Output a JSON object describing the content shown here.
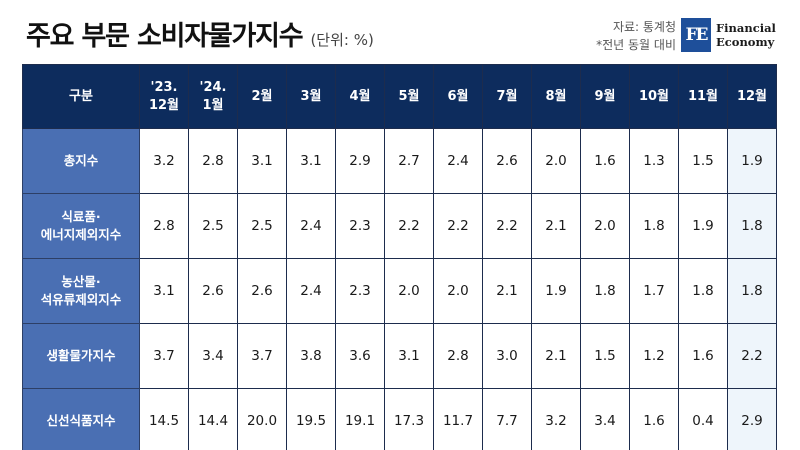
{
  "header": {
    "title": "주요 부문 소비자물가지수",
    "unit": "(단위: %)",
    "source_line1": "자료: 통계청",
    "source_line2": "*전년 동월 대비"
  },
  "logo": {
    "mark": "FE",
    "line1": "Financial",
    "line2": "Economy"
  },
  "colors": {
    "header_bg": "#0d2c5d",
    "row_header_bg": "#4a6fb3",
    "highlight_col_bg": "#eef5fb"
  },
  "chart_data": {
    "type": "table",
    "title": "주요 부문 소비자물가지수",
    "unit": "%",
    "columns": [
      "구분",
      "'23.\n12월",
      "'24.\n1월",
      "2월",
      "3월",
      "4월",
      "5월",
      "6월",
      "7월",
      "8월",
      "9월",
      "10월",
      "11월",
      "12월"
    ],
    "rows": [
      {
        "label": "총지수",
        "values": [
          "3.2",
          "2.8",
          "3.1",
          "3.1",
          "2.9",
          "2.7",
          "2.4",
          "2.6",
          "2.0",
          "1.6",
          "1.3",
          "1.5",
          "1.9"
        ]
      },
      {
        "label": "식료품·\n에너지제외지수",
        "values": [
          "2.8",
          "2.5",
          "2.5",
          "2.4",
          "2.3",
          "2.2",
          "2.2",
          "2.2",
          "2.1",
          "2.0",
          "1.8",
          "1.9",
          "1.8"
        ]
      },
      {
        "label": "농산물·\n석유류제외지수",
        "values": [
          "3.1",
          "2.6",
          "2.6",
          "2.4",
          "2.3",
          "2.0",
          "2.0",
          "2.1",
          "1.9",
          "1.8",
          "1.7",
          "1.8",
          "1.8"
        ]
      },
      {
        "label": "생활물가지수",
        "values": [
          "3.7",
          "3.4",
          "3.7",
          "3.8",
          "3.6",
          "3.1",
          "2.8",
          "3.0",
          "2.1",
          "1.5",
          "1.2",
          "1.6",
          "2.2"
        ]
      },
      {
        "label": "신선식품지수",
        "values": [
          "14.5",
          "14.4",
          "20.0",
          "19.5",
          "19.1",
          "17.3",
          "11.7",
          "7.7",
          "3.2",
          "3.4",
          "1.6",
          "0.4",
          "2.9"
        ]
      }
    ]
  }
}
